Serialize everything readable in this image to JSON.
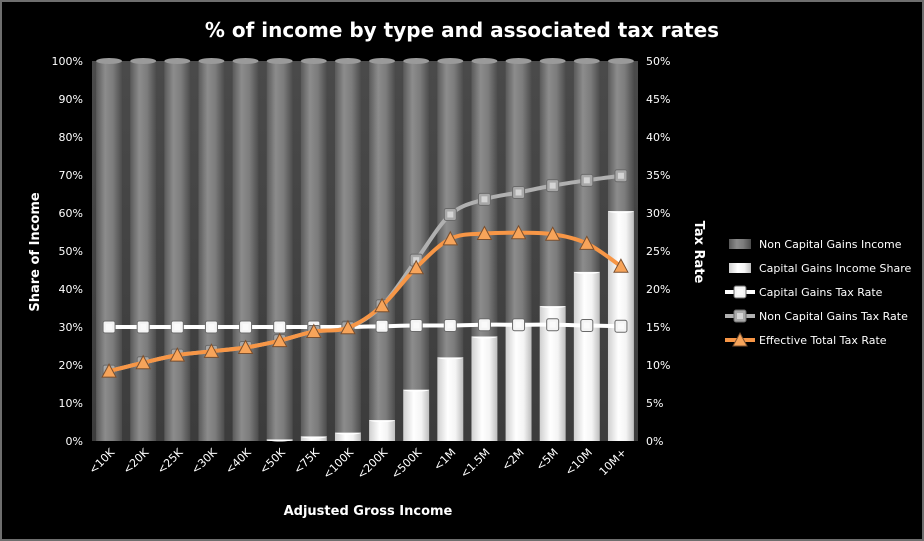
{
  "chart_data": {
    "type": "bar",
    "title": "% of income by type and associated tax rates",
    "xlabel": "Adjusted Gross Income",
    "ylabel": "Share of Income",
    "y2label": "Tax Rate",
    "ylim": [
      0,
      100
    ],
    "y2lim": [
      0,
      50
    ],
    "yticks": [
      "0%",
      "10%",
      "20%",
      "30%",
      "40%",
      "50%",
      "60%",
      "70%",
      "80%",
      "90%",
      "100%"
    ],
    "y2ticks": [
      "0%",
      "5%",
      "10%",
      "15%",
      "20%",
      "25%",
      "30%",
      "35%",
      "40%",
      "45%",
      "50%"
    ],
    "categories": [
      "<10K",
      "<20K",
      "<25K",
      "<30K",
      "<40K",
      "<50K",
      "<75K",
      "<100K",
      "<200K",
      "<500K",
      "<1M",
      "<1.5M",
      "<2M",
      "<5M",
      "<10M",
      "10M+"
    ],
    "stacked": true,
    "grid": false,
    "legend_position": "right",
    "series": [
      {
        "name": "Non Capital Gains Income",
        "kind": "bar",
        "color": "#7a7a7a",
        "values": [
          100,
          100,
          100,
          100,
          100,
          99.6,
          98.8,
          97.8,
          94.5,
          86.5,
          78,
          72.5,
          69,
          64.5,
          55.5,
          39.5
        ]
      },
      {
        "name": "Capital Gains Income Share",
        "kind": "bar",
        "color": "#f2f2f2",
        "values": [
          0,
          0,
          0,
          0,
          0,
          0.4,
          1.2,
          2.2,
          5.5,
          13.5,
          22,
          27.5,
          31,
          35.5,
          44.5,
          60.5
        ]
      },
      {
        "name": "Capital Gains Tax Rate",
        "kind": "line",
        "axis": "right",
        "color": "#ffffff",
        "values": [
          15,
          15,
          15,
          15,
          15,
          15,
          15,
          15,
          15.1,
          15.2,
          15.2,
          15.3,
          15.3,
          15.3,
          15.2,
          15.1
        ]
      },
      {
        "name": "Non Capital Gains Tax Rate",
        "kind": "line",
        "axis": "right",
        "color": "#b0b0b0",
        "values": [
          9.2,
          10.3,
          11.3,
          11.8,
          12.3,
          13.2,
          14.4,
          14.9,
          17.8,
          23.8,
          29.8,
          31.8,
          32.7,
          33.6,
          34.3,
          34.9
        ]
      },
      {
        "name": "Effective Total Tax Rate",
        "kind": "line",
        "axis": "right",
        "color": "#f79646",
        "values": [
          9.2,
          10.3,
          11.3,
          11.8,
          12.3,
          13.2,
          14.4,
          14.9,
          17.8,
          22.8,
          26.6,
          27.3,
          27.4,
          27.2,
          26,
          23
        ]
      }
    ]
  }
}
